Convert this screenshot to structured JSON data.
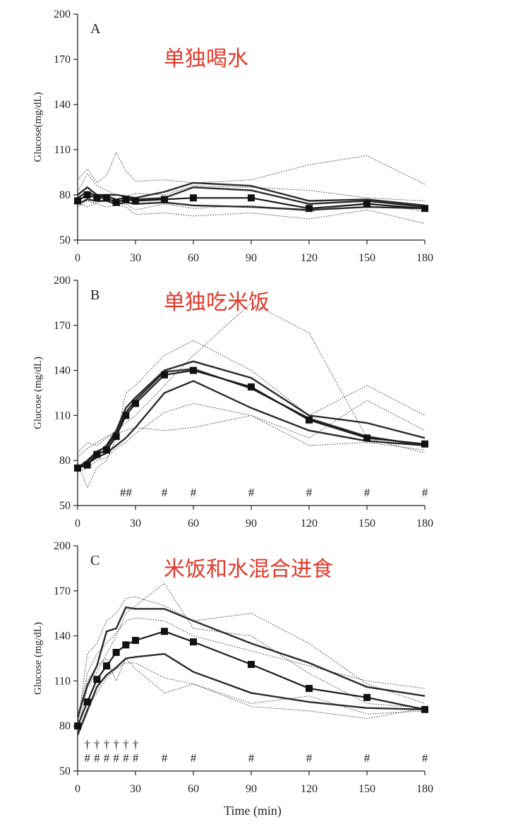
{
  "figure": {
    "xlabel": "Time (min)"
  },
  "chart_data": [
    {
      "type": "line",
      "panel_label": "A",
      "annotation": "单独喝水",
      "ylabel": "Glucose(mg/dL)",
      "xlim": [
        0,
        180
      ],
      "ylim": [
        50,
        200
      ],
      "xticks": [
        0,
        30,
        60,
        90,
        120,
        150,
        180
      ],
      "yticks": [
        50,
        80,
        110,
        140,
        170,
        200
      ],
      "series": [
        {
          "style": "mean-marker",
          "x": [
            0,
            5,
            10,
            15,
            20,
            25,
            30,
            45,
            60,
            90,
            120,
            150,
            180
          ],
          "y": [
            76,
            80,
            78,
            78,
            75,
            77,
            76,
            77,
            78,
            78,
            71,
            74,
            71
          ]
        },
        {
          "style": "solid",
          "x": [
            0,
            5,
            10,
            15,
            20,
            25,
            30,
            45,
            60,
            90,
            120,
            150,
            180
          ],
          "y": [
            80,
            85,
            80,
            80,
            80,
            79,
            78,
            82,
            88,
            86,
            76,
            77,
            73
          ]
        },
        {
          "style": "solid",
          "x": [
            0,
            5,
            10,
            15,
            20,
            25,
            30,
            45,
            60,
            90,
            120,
            150,
            180
          ],
          "y": [
            74,
            77,
            76,
            76,
            74,
            75,
            74,
            75,
            73,
            72,
            70,
            72,
            71
          ]
        },
        {
          "style": "solid",
          "x": [
            0,
            5,
            10,
            15,
            20,
            25,
            30,
            45,
            60,
            90,
            120,
            150,
            180
          ],
          "y": [
            78,
            82,
            79,
            79,
            77,
            78,
            77,
            78,
            85,
            83,
            74,
            76,
            72
          ]
        },
        {
          "style": "dotted",
          "x": [
            0,
            5,
            10,
            15,
            20,
            25,
            30,
            45,
            60,
            90,
            120,
            150,
            180
          ],
          "y": [
            90,
            97,
            88,
            93,
            108,
            96,
            89,
            90,
            88,
            90,
            100,
            106,
            87
          ]
        },
        {
          "style": "dotted",
          "x": [
            0,
            5,
            10,
            15,
            20,
            25,
            30,
            45,
            60,
            90,
            120,
            150,
            180
          ],
          "y": [
            82,
            94,
            86,
            83,
            80,
            79,
            81,
            80,
            86,
            85,
            83,
            78,
            76
          ]
        },
        {
          "style": "dotted",
          "x": [
            0,
            5,
            10,
            15,
            20,
            25,
            30,
            45,
            60,
            90,
            120,
            150,
            180
          ],
          "y": [
            72,
            76,
            74,
            72,
            73,
            72,
            67,
            68,
            66,
            68,
            64,
            70,
            61
          ]
        },
        {
          "style": "dotted",
          "x": [
            0,
            5,
            10,
            15,
            20,
            25,
            30,
            45,
            60,
            90,
            120,
            150,
            180
          ],
          "y": [
            75,
            72,
            75,
            76,
            73,
            74,
            70,
            74,
            71,
            73,
            69,
            75,
            69
          ]
        }
      ]
    },
    {
      "type": "line",
      "panel_label": "B",
      "annotation": "单独吃米饭",
      "ylabel": "Glucose (mg/dL)",
      "xlim": [
        0,
        180
      ],
      "ylim": [
        50,
        200
      ],
      "xticks": [
        0,
        30,
        60,
        90,
        120,
        150,
        180
      ],
      "yticks": [
        50,
        80,
        110,
        140,
        170,
        200
      ],
      "marker_row": [
        {
          "x": 25,
          "label": "##"
        },
        {
          "x": 45,
          "label": "#"
        },
        {
          "x": 60,
          "label": "#"
        },
        {
          "x": 90,
          "label": "#"
        },
        {
          "x": 120,
          "label": "#"
        },
        {
          "x": 150,
          "label": "#"
        },
        {
          "x": 180,
          "label": "#"
        }
      ],
      "series": [
        {
          "style": "mean-marker",
          "x": [
            0,
            5,
            10,
            15,
            20,
            25,
            30,
            45,
            60,
            90,
            120,
            150,
            180
          ],
          "y": [
            75,
            77,
            84,
            87,
            96,
            110,
            118,
            137,
            140,
            129,
            107,
            95,
            91
          ]
        },
        {
          "style": "solid",
          "x": [
            0,
            5,
            10,
            15,
            20,
            25,
            30,
            45,
            60,
            90,
            120,
            150,
            180
          ],
          "y": [
            74,
            79,
            85,
            90,
            100,
            115,
            122,
            140,
            146,
            135,
            110,
            105,
            95
          ]
        },
        {
          "style": "solid",
          "x": [
            0,
            5,
            10,
            15,
            20,
            25,
            30,
            45,
            60,
            90,
            120,
            150,
            180
          ],
          "y": [
            76,
            78,
            82,
            85,
            90,
            95,
            102,
            125,
            133,
            115,
            100,
            93,
            90
          ]
        },
        {
          "style": "solid",
          "x": [
            0,
            5,
            10,
            15,
            20,
            25,
            30,
            45,
            60,
            90,
            120,
            150,
            180
          ],
          "y": [
            75,
            80,
            86,
            89,
            98,
            112,
            120,
            139,
            141,
            128,
            108,
            96,
            90
          ]
        },
        {
          "style": "dotted",
          "x": [
            0,
            5,
            10,
            15,
            20,
            25,
            30,
            45,
            60,
            90,
            120,
            150,
            180
          ],
          "y": [
            78,
            62,
            75,
            80,
            95,
            125,
            130,
            150,
            160,
            140,
            110,
            130,
            110
          ]
        },
        {
          "style": "dotted",
          "x": [
            0,
            5,
            10,
            15,
            20,
            25,
            30,
            45,
            60,
            90,
            120,
            150,
            180
          ],
          "y": [
            82,
            88,
            92,
            96,
            98,
            100,
            102,
            100,
            102,
            110,
            95,
            120,
            100
          ]
        },
        {
          "style": "dotted",
          "x": [
            0,
            5,
            10,
            15,
            20,
            25,
            30,
            45,
            60,
            90,
            120,
            150,
            180
          ],
          "y": [
            85,
            92,
            90,
            95,
            100,
            105,
            110,
            130,
            150,
            185,
            165,
            95,
            85
          ]
        },
        {
          "style": "dotted",
          "x": [
            0,
            5,
            10,
            15,
            20,
            25,
            30,
            45,
            60,
            90,
            120,
            150,
            180
          ],
          "y": [
            72,
            75,
            80,
            82,
            88,
            92,
            98,
            112,
            118,
            110,
            90,
            92,
            87
          ]
        }
      ]
    },
    {
      "type": "line",
      "panel_label": "C",
      "annotation": "米饭和水混合进食",
      "ylabel": "Glucose (mg/dL)",
      "xlim": [
        0,
        180
      ],
      "ylim": [
        50,
        200
      ],
      "xticks": [
        0,
        30,
        60,
        90,
        120,
        150,
        180
      ],
      "yticks": [
        50,
        80,
        110,
        140,
        170,
        200
      ],
      "marker_row_top": [
        {
          "x": 5,
          "label": "†"
        },
        {
          "x": 10,
          "label": "†"
        },
        {
          "x": 15,
          "label": "†"
        },
        {
          "x": 20,
          "label": "†"
        },
        {
          "x": 25,
          "label": "†"
        },
        {
          "x": 30,
          "label": "†"
        }
      ],
      "marker_row": [
        {
          "x": 5,
          "label": "#"
        },
        {
          "x": 10,
          "label": "#"
        },
        {
          "x": 15,
          "label": "#"
        },
        {
          "x": 20,
          "label": "#"
        },
        {
          "x": 25,
          "label": "#"
        },
        {
          "x": 30,
          "label": "#"
        },
        {
          "x": 45,
          "label": "#"
        },
        {
          "x": 60,
          "label": "#"
        },
        {
          "x": 90,
          "label": "#"
        },
        {
          "x": 120,
          "label": "#"
        },
        {
          "x": 150,
          "label": "#"
        },
        {
          "x": 180,
          "label": "#"
        }
      ],
      "series": [
        {
          "style": "mean-marker",
          "x": [
            0,
            5,
            10,
            15,
            20,
            25,
            30,
            45,
            60,
            90,
            120,
            150,
            180
          ],
          "y": [
            80,
            96,
            111,
            120,
            129,
            134,
            137,
            143,
            136,
            121,
            105,
            99,
            91
          ]
        },
        {
          "style": "solid",
          "x": [
            0,
            5,
            10,
            15,
            20,
            25,
            30,
            45,
            60,
            90,
            120,
            150,
            180
          ],
          "y": [
            86,
            107,
            120,
            143,
            145,
            159,
            158,
            158,
            150,
            135,
            122,
            106,
            100
          ]
        },
        {
          "style": "solid",
          "x": [
            0,
            5,
            10,
            15,
            20,
            25,
            30,
            45,
            60,
            90,
            120,
            150,
            180
          ],
          "y": [
            74,
            90,
            106,
            114,
            119,
            125,
            126,
            128,
            116,
            102,
            96,
            92,
            91
          ]
        },
        {
          "style": "dotted",
          "x": [
            0,
            5,
            10,
            15,
            20,
            25,
            30,
            45,
            60,
            90,
            120,
            150,
            180
          ],
          "y": [
            80,
            128,
            135,
            150,
            155,
            165,
            166,
            160,
            150,
            155,
            135,
            108,
            95
          ]
        },
        {
          "style": "dotted",
          "x": [
            0,
            5,
            10,
            15,
            20,
            25,
            30,
            45,
            60,
            90,
            120,
            150,
            180
          ],
          "y": [
            78,
            105,
            116,
            128,
            140,
            155,
            160,
            175,
            145,
            140,
            115,
            95,
            92
          ]
        },
        {
          "style": "dotted",
          "x": [
            0,
            5,
            10,
            15,
            20,
            25,
            30,
            45,
            60,
            90,
            120,
            150,
            180
          ],
          "y": [
            82,
            110,
            120,
            125,
            110,
            125,
            118,
            102,
            108,
            95,
            100,
            88,
            90
          ]
        },
        {
          "style": "dotted",
          "x": [
            0,
            5,
            10,
            15,
            20,
            25,
            30,
            45,
            60,
            90,
            120,
            150,
            180
          ],
          "y": [
            76,
            92,
            102,
            112,
            118,
            122,
            122,
            112,
            108,
            93,
            90,
            85,
            92
          ]
        },
        {
          "style": "dotted",
          "x": [
            0,
            5,
            10,
            15,
            20,
            25,
            30,
            45,
            60,
            90,
            120,
            150,
            180
          ],
          "y": [
            84,
            115,
            128,
            135,
            142,
            150,
            152,
            150,
            140,
            130,
            120,
            110,
            105
          ]
        }
      ]
    }
  ]
}
